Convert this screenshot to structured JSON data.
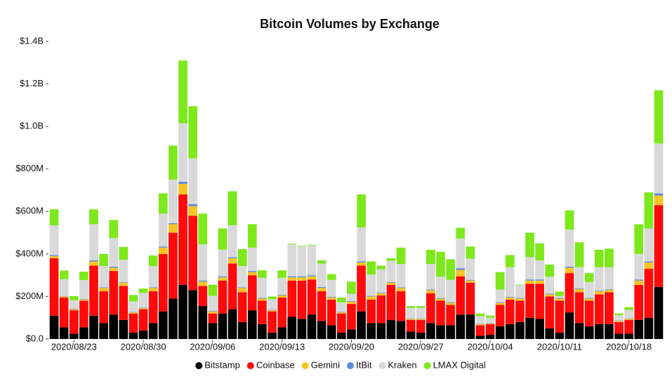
{
  "chart_data": {
    "type": "stacked_bar",
    "title": "Bitcoin Volumes by Exchange",
    "categories": [
      null,
      null,
      "2020/08/23",
      null,
      null,
      null,
      null,
      null,
      null,
      "2020/08/30",
      null,
      null,
      null,
      null,
      null,
      null,
      "2020/09/06",
      null,
      null,
      null,
      null,
      null,
      null,
      "2020/09/13",
      null,
      null,
      null,
      null,
      null,
      null,
      "2020/09/20",
      null,
      null,
      null,
      null,
      null,
      null,
      "2020/09/27",
      null,
      null,
      null,
      null,
      null,
      null,
      "2020/10/04",
      null,
      null,
      null,
      null,
      null,
      null,
      "2020/10/11",
      null,
      null,
      null,
      null,
      null,
      null,
      "2020/10/18",
      null,
      null,
      null
    ],
    "series": [
      {
        "name": "Bitstamp",
        "color": "#000000",
        "values": [
          110,
          55,
          25,
          55,
          110,
          75,
          115,
          90,
          30,
          40,
          75,
          130,
          190,
          255,
          230,
          155,
          75,
          120,
          140,
          80,
          135,
          70,
          30,
          55,
          105,
          95,
          115,
          85,
          65,
          30,
          45,
          130,
          75,
          75,
          90,
          85,
          35,
          30,
          75,
          65,
          65,
          115,
          115,
          15,
          20,
          60,
          70,
          80,
          100,
          95,
          50,
          30,
          125,
          75,
          60,
          70,
          70,
          25,
          25,
          90,
          100,
          245
        ]
      },
      {
        "name": "Coinbase",
        "color": "#ff0a0a",
        "values": [
          270,
          140,
          110,
          125,
          235,
          150,
          205,
          160,
          90,
          100,
          150,
          270,
          310,
          425,
          350,
          95,
          45,
          155,
          215,
          140,
          165,
          110,
          100,
          140,
          170,
          180,
          165,
          140,
          120,
          90,
          120,
          215,
          110,
          130,
          165,
          140,
          55,
          60,
          140,
          115,
          95,
          180,
          150,
          50,
          50,
          100,
          115,
          100,
          160,
          165,
          150,
          150,
          185,
          145,
          120,
          140,
          150,
          55,
          65,
          165,
          230,
          385
        ]
      },
      {
        "name": "Gemini",
        "color": "#f7c325",
        "values": [
          10,
          5,
          5,
          5,
          20,
          15,
          15,
          15,
          5,
          5,
          15,
          30,
          40,
          50,
          45,
          20,
          10,
          15,
          25,
          20,
          15,
          10,
          5,
          10,
          15,
          15,
          15,
          15,
          10,
          5,
          10,
          15,
          15,
          10,
          10,
          15,
          5,
          5,
          15,
          10,
          10,
          30,
          10,
          5,
          3,
          10,
          10,
          10,
          15,
          15,
          10,
          10,
          25,
          15,
          10,
          15,
          10,
          5,
          5,
          20,
          30,
          45
        ]
      },
      {
        "name": "ItBit",
        "color": "#5b8cdb",
        "values": [
          5,
          2,
          2,
          2,
          5,
          3,
          5,
          3,
          2,
          2,
          3,
          5,
          5,
          10,
          10,
          5,
          3,
          5,
          5,
          3,
          5,
          3,
          2,
          3,
          5,
          5,
          5,
          5,
          3,
          2,
          3,
          5,
          3,
          3,
          3,
          3,
          2,
          2,
          3,
          3,
          3,
          8,
          3,
          2,
          2,
          3,
          3,
          3,
          5,
          5,
          3,
          3,
          5,
          3,
          3,
          3,
          3,
          2,
          2,
          5,
          5,
          10
        ]
      },
      {
        "name": "Kraken",
        "color": "#d9d9d9",
        "values": [
          140,
          80,
          40,
          90,
          170,
          100,
          135,
          105,
          50,
          70,
          100,
          155,
          205,
          275,
          215,
          170,
          70,
          125,
          150,
          100,
          110,
          95,
          50,
          80,
          150,
          140,
          140,
          110,
          80,
          45,
          35,
          160,
          100,
          110,
          100,
          110,
          50,
          50,
          120,
          100,
          105,
          140,
          100,
          35,
          25,
          60,
          140,
          60,
          105,
          90,
          80,
          10,
          175,
          100,
          75,
          110,
          105,
          25,
          40,
          120,
          155,
          235
        ]
      },
      {
        "name": "LMAX Digital",
        "color": "#7de81c",
        "values": [
          75,
          40,
          20,
          40,
          70,
          57,
          85,
          60,
          30,
          20,
          50,
          95,
          160,
          295,
          245,
          145,
          52,
          100,
          160,
          80,
          110,
          35,
          13,
          35,
          3,
          3,
          3,
          15,
          27,
          23,
          57,
          155,
          62,
          17,
          12,
          77,
          8,
          8,
          67,
          117,
          97,
          50,
          57,
          13,
          10,
          82,
          57,
          3,
          115,
          80,
          57,
          20,
          90,
          117,
          42,
          82,
          87,
          8,
          13,
          140,
          170,
          250
        ]
      }
    ],
    "ylim": [
      0,
      1400
    ],
    "yticks": [
      {
        "value": 0,
        "label": "$0.0"
      },
      {
        "value": 200,
        "label": "$200M"
      },
      {
        "value": 400,
        "label": "$400M"
      },
      {
        "value": 600,
        "label": "$600M"
      },
      {
        "value": 800,
        "label": "$800M"
      },
      {
        "value": 1000,
        "label": "$1.0B"
      },
      {
        "value": 1200,
        "label": "$1.2B"
      },
      {
        "value": 1400,
        "label": "$1.4B"
      }
    ],
    "grid": false,
    "legend": "bottom"
  }
}
